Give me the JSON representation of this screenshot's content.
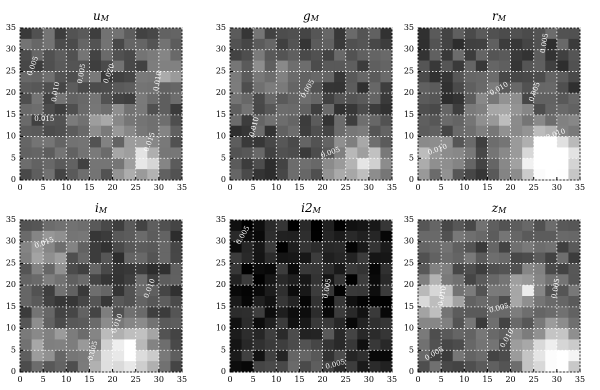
{
  "chart_data": [
    {
      "type": "heatmap",
      "title": "u",
      "title_sub": "M",
      "xlim": [
        0,
        35
      ],
      "ylim": [
        0,
        35
      ],
      "xticks": [
        0,
        5,
        10,
        15,
        20,
        25,
        30,
        35
      ],
      "yticks": [
        0,
        5,
        10,
        15,
        20,
        25,
        30,
        35
      ],
      "grid": true,
      "annotations": [
        "0.005",
        "0.010",
        "0.005",
        "0.015",
        "0.020",
        "0.010",
        "0.015"
      ]
    },
    {
      "type": "heatmap",
      "title": "g",
      "title_sub": "M",
      "xlim": [
        0,
        35
      ],
      "ylim": [
        0,
        35
      ],
      "xticks": [
        0,
        5,
        10,
        15,
        20,
        25,
        30,
        35
      ],
      "yticks": [
        0,
        5,
        10,
        15,
        20,
        25,
        30,
        35
      ],
      "grid": true,
      "annotations": [
        "0.005",
        "0.010",
        "0.005"
      ]
    },
    {
      "type": "heatmap",
      "title": "r",
      "title_sub": "M",
      "xlim": [
        0,
        35
      ],
      "ylim": [
        0,
        35
      ],
      "xticks": [
        0,
        5,
        10,
        15,
        20,
        25,
        30,
        35
      ],
      "yticks": [
        0,
        5,
        10,
        15,
        20,
        25,
        30,
        35
      ],
      "grid": true,
      "annotations": [
        "0.010",
        "0.005",
        "0.010",
        "0.010",
        "0.005"
      ]
    },
    {
      "type": "heatmap",
      "title": "i",
      "title_sub": "M",
      "xlim": [
        0,
        35
      ],
      "ylim": [
        0,
        35
      ],
      "xticks": [
        0,
        5,
        10,
        15,
        20,
        25,
        30,
        35
      ],
      "yticks": [
        0,
        5,
        10,
        15,
        20,
        25,
        30,
        35
      ],
      "grid": true,
      "annotations": [
        "0.015",
        "0.010",
        "0.010",
        "0.005"
      ]
    },
    {
      "type": "heatmap",
      "title": "i2",
      "title_sub": "M",
      "xlim": [
        0,
        35
      ],
      "ylim": [
        0,
        35
      ],
      "xticks": [
        0,
        5,
        10,
        15,
        20,
        25,
        30,
        35
      ],
      "yticks": [
        0,
        5,
        10,
        15,
        20,
        25,
        30,
        35
      ],
      "grid": true,
      "annotations": [
        "0.005",
        "0.005",
        "0.005"
      ]
    },
    {
      "type": "heatmap",
      "title": "z",
      "title_sub": "M",
      "xlim": [
        0,
        35
      ],
      "ylim": [
        0,
        35
      ],
      "xticks": [
        0,
        5,
        10,
        15,
        20,
        25,
        30,
        35
      ],
      "yticks": [
        0,
        5,
        10,
        15,
        20,
        25,
        30,
        35
      ],
      "grid": true,
      "annotations": [
        "0.010",
        "0.005",
        "0.005",
        "0.010",
        "0.005"
      ]
    }
  ]
}
